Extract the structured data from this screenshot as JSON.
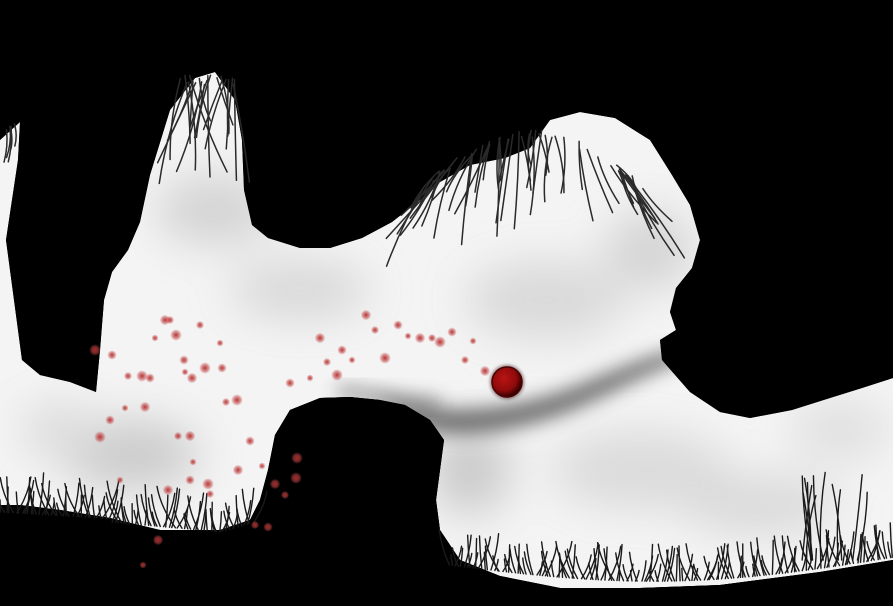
{
  "game": {
    "background_color": "#000000",
    "cave_fill_color": "#f4f4f4",
    "cave_shadow_color": "#bdbdbd",
    "grass_color": "#2a2a2a",
    "player_ball_color": "#8e0a0a",
    "particle_color": "#c24646",
    "player": "red-ball",
    "effects": [
      "red-particle-trail",
      "dark-light-beam",
      "hanging-grass",
      "ground-grass"
    ]
  }
}
